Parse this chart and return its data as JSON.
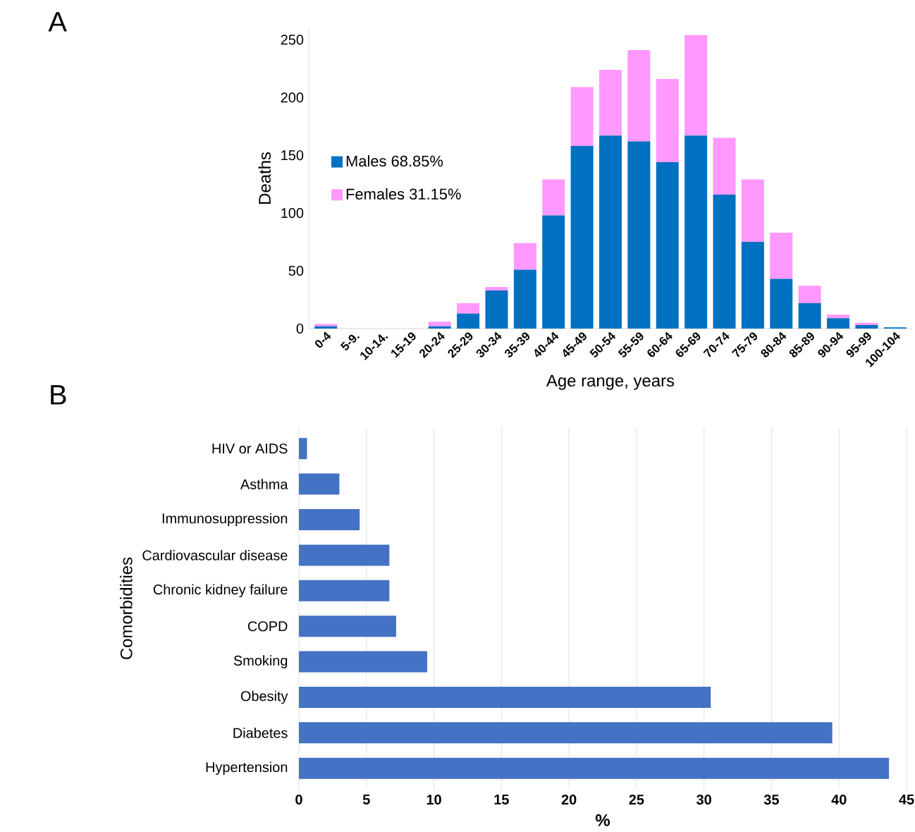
{
  "chart_data": [
    {
      "type": "bar",
      "stacked": true,
      "annotations": [
        "A"
      ],
      "xlabel": "Age range, years",
      "ylabel": "Deaths",
      "categories": [
        "0-4",
        "5-9.",
        "10-14.",
        "15-19",
        "20-24",
        "25-29",
        "30-34",
        "35-39",
        "40-44",
        "45-49",
        "50-54",
        "55-59",
        "60-64",
        "65-69",
        "70-74",
        "75-79",
        "80-84",
        "85-89",
        "90-94",
        "95-99",
        "100-104"
      ],
      "series": [
        {
          "name": "Males 68.85%",
          "color": "#0070c0",
          "values": [
            2,
            0,
            0,
            0,
            2,
            13,
            33,
            51,
            98,
            158,
            167,
            162,
            144,
            167,
            116,
            75,
            43,
            22,
            9,
            3,
            1
          ]
        },
        {
          "name": "Females 31.15%",
          "color": "#ff99ff",
          "values": [
            2,
            0,
            0,
            0,
            4,
            9,
            3,
            23,
            31,
            51,
            57,
            79,
            72,
            87,
            49,
            54,
            40,
            15,
            3,
            2,
            0
          ]
        }
      ],
      "ylim": [
        0,
        260
      ],
      "yticks": [
        0,
        50,
        100,
        150,
        200,
        250
      ],
      "grid": false,
      "legend": "left"
    },
    {
      "type": "bar",
      "orientation": "horizontal",
      "annotations": [
        "B"
      ],
      "xlabel": "%",
      "ylabel": "Comorbidities",
      "categories": [
        "HIV or AIDS",
        "Asthma",
        "Immunosuppression",
        "Cardiovascular disease",
        "Chronic kidney failure",
        "COPD",
        "Smoking",
        "Obesity",
        "Diabetes",
        "Hypertension"
      ],
      "values": [
        0.6,
        3.0,
        4.5,
        6.7,
        6.7,
        7.2,
        9.5,
        30.5,
        39.5,
        43.7
      ],
      "color": "#4472c4",
      "xlim": [
        0,
        45
      ],
      "xticks": [
        0,
        5,
        10,
        15,
        20,
        25,
        30,
        35,
        40,
        45
      ],
      "grid": "x"
    }
  ]
}
